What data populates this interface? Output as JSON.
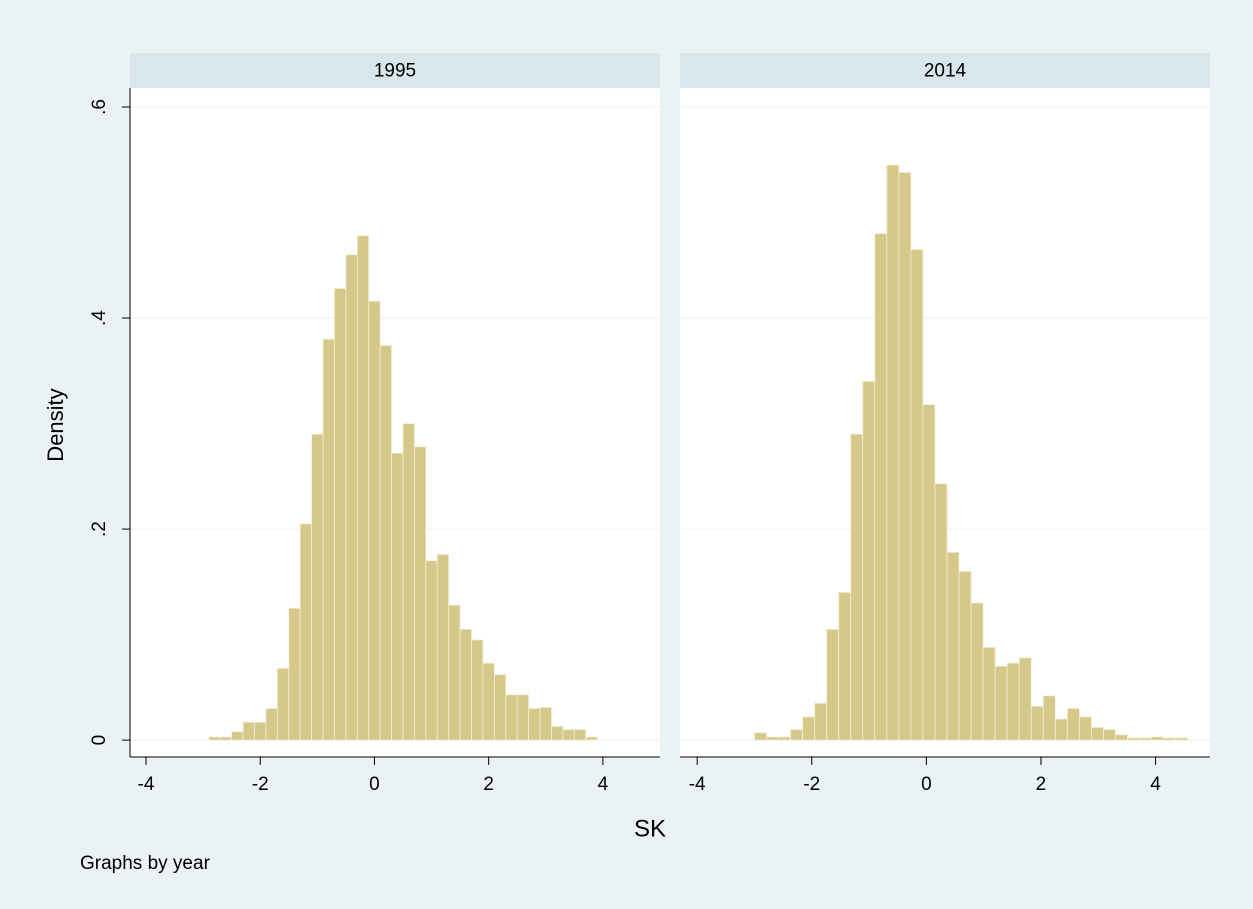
{
  "figure": {
    "ylabel": "Density",
    "xlabel": "SK",
    "note": "Graphs by year"
  },
  "chart_data": [
    {
      "type": "histogram",
      "title": "1995",
      "color": "#d4c98a",
      "bins": [
        -2.9,
        -2.7,
        -2.5,
        -2.3,
        -2.1,
        -1.9,
        -1.7,
        -1.5,
        -1.3,
        -1.1,
        -0.9,
        -0.7,
        -0.5,
        -0.3,
        -0.1,
        0.1,
        0.3,
        0.5,
        0.7,
        0.9,
        1.1,
        1.3,
        1.5,
        1.7,
        1.9,
        2.1,
        2.3,
        2.5,
        2.7,
        2.9,
        3.1,
        3.3,
        3.5,
        3.7,
        3.9
      ],
      "values": [
        0.003,
        0.003,
        0.008,
        0.017,
        0.017,
        0.03,
        0.068,
        0.125,
        0.205,
        0.29,
        0.38,
        0.428,
        0.46,
        0.478,
        0.416,
        0.374,
        0.272,
        0.3,
        0.278,
        0.17,
        0.176,
        0.128,
        0.105,
        0.095,
        0.073,
        0.062,
        0.043,
        0.043,
        0.03,
        0.031,
        0.013,
        0.01,
        0.01,
        0.003
      ],
      "xlim": [
        -4.28,
        5.0
      ],
      "xticks": [
        -4,
        -2,
        0,
        2,
        4
      ],
      "ylim": [
        -0.016,
        0.618
      ],
      "yticks": [
        0,
        {
          "value": 0.2,
          "label": ".2"
        },
        {
          "value": 0.4,
          "label": ".4"
        },
        {
          "value": 0.6,
          "label": ".6"
        }
      ]
    },
    {
      "type": "histogram",
      "title": "2014",
      "color": "#d4c98a",
      "bins": [
        -3.0,
        -2.79,
        -2.58,
        -2.37,
        -2.16,
        -1.95,
        -1.74,
        -1.53,
        -1.32,
        -1.11,
        -0.9,
        -0.69,
        -0.48,
        -0.27,
        -0.06,
        0.15,
        0.36,
        0.57,
        0.78,
        0.99,
        1.2,
        1.41,
        1.62,
        1.83,
        2.04,
        2.25,
        2.46,
        2.67,
        2.88,
        3.09,
        3.3,
        3.51,
        3.72,
        3.93,
        4.14,
        4.35,
        4.56
      ],
      "values": [
        0.007,
        0.003,
        0.003,
        0.01,
        0.022,
        0.035,
        0.105,
        0.14,
        0.29,
        0.34,
        0.48,
        0.545,
        0.538,
        0.465,
        0.318,
        0.243,
        0.178,
        0.16,
        0.13,
        0.088,
        0.07,
        0.073,
        0.078,
        0.032,
        0.042,
        0.02,
        0.03,
        0.022,
        0.012,
        0.01,
        0.005,
        0.002,
        0.002,
        0.003,
        0.002,
        0.002
      ],
      "xlim": [
        -4.3,
        4.95
      ],
      "xticks": [
        -4,
        -2,
        0,
        2,
        4
      ],
      "ylim": [
        -0.016,
        0.618
      ]
    }
  ]
}
